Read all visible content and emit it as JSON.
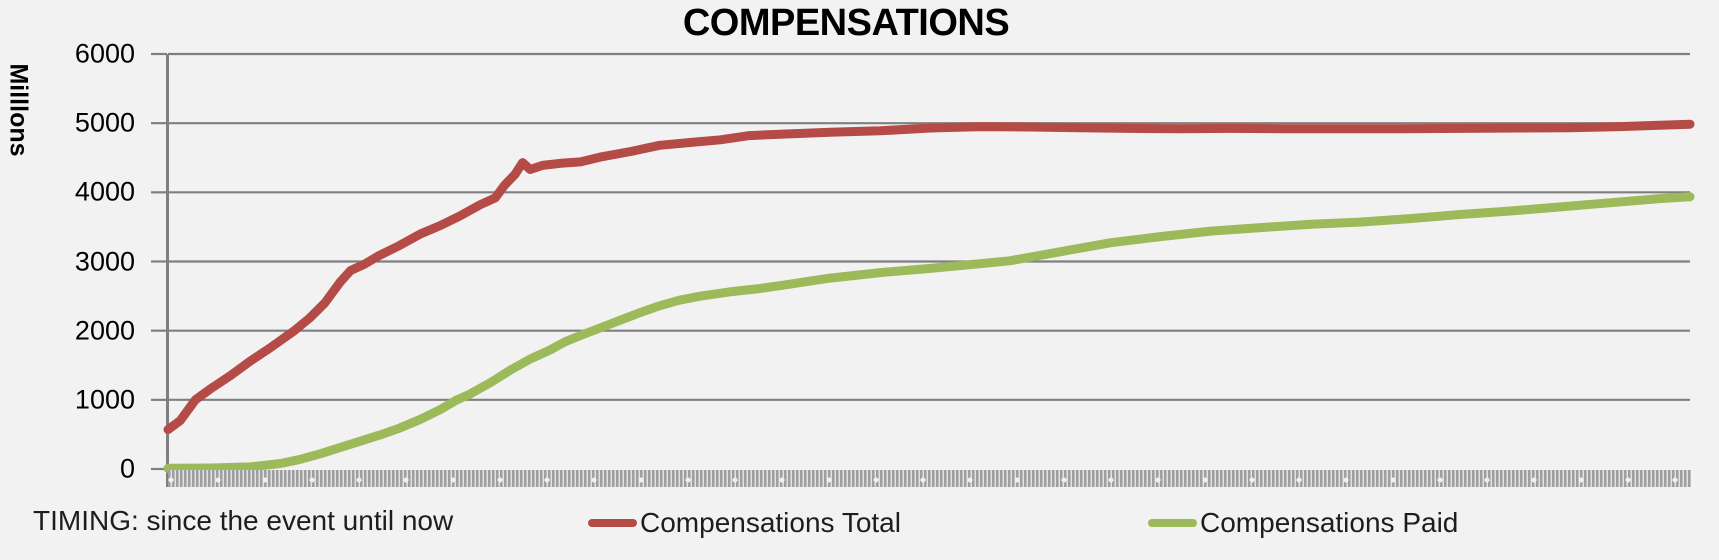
{
  "chart_data": {
    "type": "line",
    "title": "COMPENSATIONS",
    "ylabel": "Milllons",
    "xlabel": "",
    "ylim": [
      0,
      6000
    ],
    "y_ticks": [
      0,
      1000,
      2000,
      3000,
      4000,
      5000,
      6000
    ],
    "grid": true,
    "legend_position": "bottom",
    "x_unit": "percent_of_timeline",
    "x_axis_style": "dense unreadable rotated tick labels strip",
    "colors": {
      "background": "#f2f2f3",
      "gridline": "#7f7f7f",
      "axis": "#7f7f7f",
      "total_line": "#b54b47",
      "paid_line": "#9cba59"
    },
    "series": [
      {
        "name": "Compensations Total",
        "color": "#b54b47",
        "points": [
          [
            0,
            570
          ],
          [
            0.8,
            700
          ],
          [
            1.8,
            1000
          ],
          [
            2.8,
            1160
          ],
          [
            4.1,
            1350
          ],
          [
            5.4,
            1560
          ],
          [
            6.7,
            1750
          ],
          [
            8.3,
            2000
          ],
          [
            9.3,
            2180
          ],
          [
            10.3,
            2400
          ],
          [
            11.3,
            2700
          ],
          [
            12,
            2870
          ],
          [
            12.9,
            2960
          ],
          [
            13.9,
            3090
          ],
          [
            15.2,
            3230
          ],
          [
            16.6,
            3400
          ],
          [
            17.9,
            3520
          ],
          [
            19.2,
            3660
          ],
          [
            20.5,
            3820
          ],
          [
            21.5,
            3920
          ],
          [
            22.1,
            4100
          ],
          [
            22.8,
            4260
          ],
          [
            23.3,
            4430
          ],
          [
            23.8,
            4330
          ],
          [
            24.6,
            4390
          ],
          [
            25.8,
            4420
          ],
          [
            27.1,
            4440
          ],
          [
            28.4,
            4510
          ],
          [
            30.4,
            4590
          ],
          [
            32.3,
            4680
          ],
          [
            34.3,
            4720
          ],
          [
            36.3,
            4760
          ],
          [
            38.2,
            4820
          ],
          [
            40.2,
            4840
          ],
          [
            43.5,
            4870
          ],
          [
            46.8,
            4890
          ],
          [
            50.1,
            4930
          ],
          [
            53.4,
            4950
          ],
          [
            56.6,
            4945
          ],
          [
            59.9,
            4935
          ],
          [
            63.2,
            4925
          ],
          [
            66.5,
            4920
          ],
          [
            69.8,
            4925
          ],
          [
            73.1,
            4920
          ],
          [
            77,
            4920
          ],
          [
            81,
            4920
          ],
          [
            84.9,
            4925
          ],
          [
            88.8,
            4930
          ],
          [
            92.1,
            4935
          ],
          [
            95.4,
            4950
          ],
          [
            98,
            4970
          ],
          [
            100,
            4985
          ]
        ]
      },
      {
        "name": "Compensations Paid",
        "color": "#9cba59",
        "points": [
          [
            0,
            10
          ],
          [
            2.8,
            15
          ],
          [
            5.4,
            30
          ],
          [
            7.4,
            80
          ],
          [
            8.7,
            140
          ],
          [
            10,
            220
          ],
          [
            11.3,
            310
          ],
          [
            12.6,
            400
          ],
          [
            13.9,
            490
          ],
          [
            15.2,
            590
          ],
          [
            16.6,
            720
          ],
          [
            17.9,
            860
          ],
          [
            18.9,
            990
          ],
          [
            19.8,
            1080
          ],
          [
            21.2,
            1250
          ],
          [
            22.5,
            1430
          ],
          [
            23.8,
            1590
          ],
          [
            25.1,
            1720
          ],
          [
            26.1,
            1840
          ],
          [
            27.1,
            1930
          ],
          [
            28.4,
            2040
          ],
          [
            29.7,
            2150
          ],
          [
            31,
            2260
          ],
          [
            32.3,
            2360
          ],
          [
            33.6,
            2440
          ],
          [
            35,
            2500
          ],
          [
            36.9,
            2560
          ],
          [
            38.9,
            2610
          ],
          [
            40.2,
            2650
          ],
          [
            43.5,
            2760
          ],
          [
            46.8,
            2840
          ],
          [
            50.1,
            2900
          ],
          [
            53.4,
            2970
          ],
          [
            55.3,
            3010
          ],
          [
            58.6,
            3140
          ],
          [
            61.9,
            3270
          ],
          [
            65.2,
            3360
          ],
          [
            68.5,
            3440
          ],
          [
            71.8,
            3490
          ],
          [
            75.1,
            3540
          ],
          [
            78.3,
            3570
          ],
          [
            81.6,
            3620
          ],
          [
            84.9,
            3680
          ],
          [
            88.2,
            3730
          ],
          [
            91.5,
            3790
          ],
          [
            94.8,
            3850
          ],
          [
            98,
            3910
          ],
          [
            100,
            3935
          ]
        ]
      }
    ]
  },
  "footer": {
    "timing_note": "TIMING: since the event until now"
  }
}
